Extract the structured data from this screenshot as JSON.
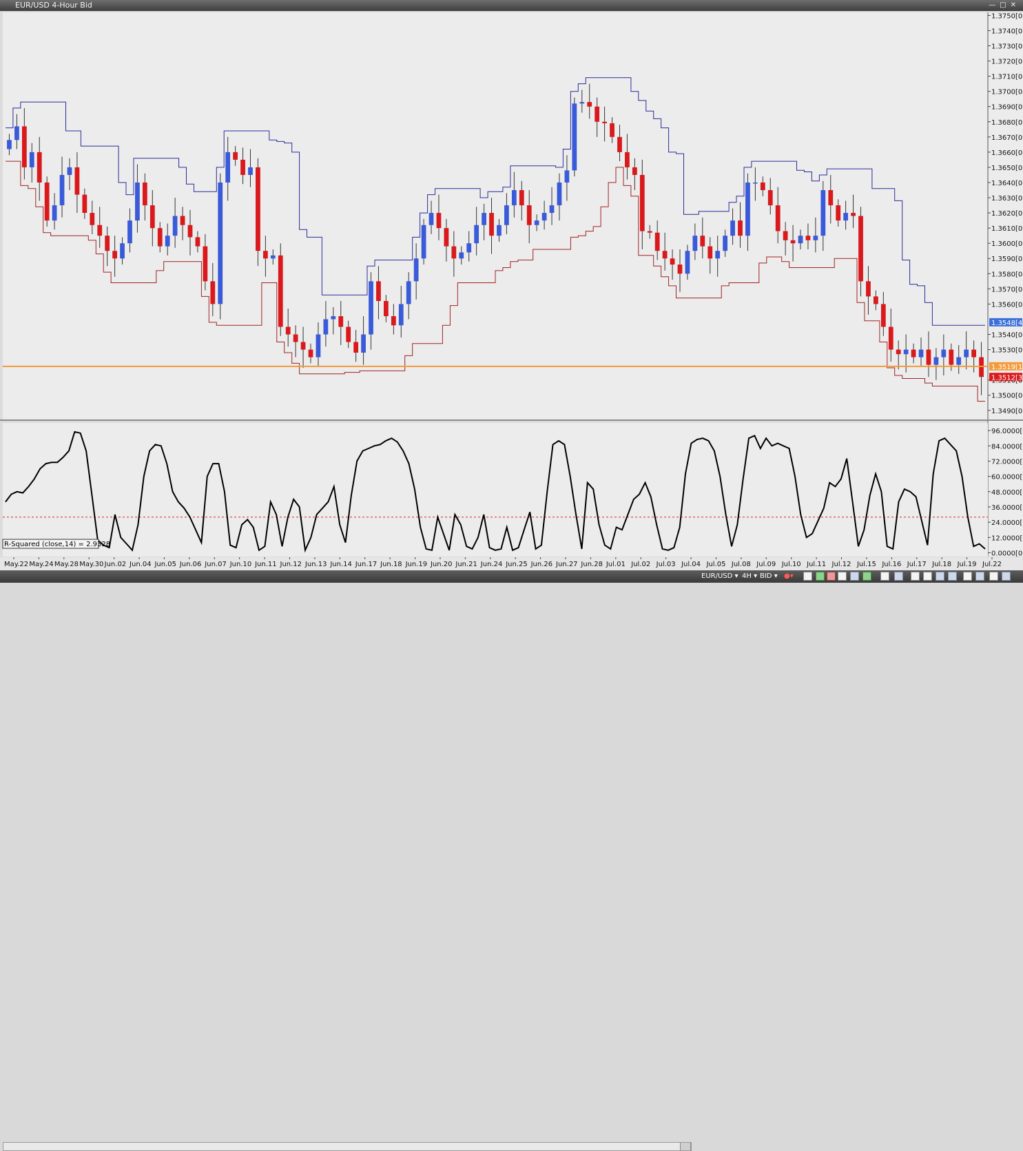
{
  "window": {
    "title": "EUR/USD 4-Hour Bid"
  },
  "colors": {
    "bg": "#ececec",
    "bull": "#3a5bd9",
    "bear": "#d9191c",
    "wick": "#333333",
    "env_upper": "#2b2b9a",
    "env_lower": "#a02222",
    "ref_line": "#f39a3a",
    "indicator": "#000000",
    "level": "#e02020"
  },
  "price_axis": {
    "labels": [
      "1.3750[0]",
      "1.3740[0]",
      "1.3730[0]",
      "1.3720[0]",
      "1.3710[0]",
      "1.3700[0]",
      "1.3690[0]",
      "1.3680[0]",
      "1.3670[0]",
      "1.3660[0]",
      "1.3650[0]",
      "1.3640[0]",
      "1.3630[0]",
      "1.3620[0]",
      "1.3610[0]",
      "1.3600[0]",
      "1.3590[0]",
      "1.3580[0]",
      "1.3570[0]",
      "1.3560[0]",
      "1.3540[0]",
      "1.3530[0]",
      "1.3510[0]",
      "1.3500[0]",
      "1.3490[0]"
    ],
    "values": [
      1.375,
      1.374,
      1.373,
      1.372,
      1.371,
      1.37,
      1.369,
      1.368,
      1.367,
      1.366,
      1.365,
      1.364,
      1.363,
      1.362,
      1.361,
      1.36,
      1.359,
      1.358,
      1.357,
      1.356,
      1.354,
      1.353,
      1.351,
      1.35,
      1.349
    ],
    "markers": [
      {
        "label": "1.3548[4]",
        "value": 1.3548,
        "color": "#3b6fd9"
      },
      {
        "label": "1.3519[1]",
        "value": 1.3519,
        "color": "#f39a3a"
      },
      {
        "label": "1.3512[3]",
        "value": 1.3512,
        "color": "#d9191c"
      }
    ]
  },
  "indicator_axis": {
    "labels": [
      "96.0000[0]",
      "84.0000[0]",
      "72.0000[0]",
      "60.0000[0]",
      "48.0000[0]",
      "36.0000[0]",
      "24.0000[0]",
      "12.0000[0]",
      "0.0000[0]"
    ],
    "values": [
      96,
      84,
      72,
      60,
      48,
      36,
      24,
      12,
      0
    ]
  },
  "indicator_label": "R-Squared (close,14) = 2.9328",
  "date_axis": {
    "labels": [
      "May.22",
      "May.24",
      "May.28",
      "May.30",
      "Jun.02",
      "Jun.04",
      "Jun.05",
      "Jun.06",
      "Jun.07",
      "Jun.10",
      "Jun.11",
      "Jun.12",
      "Jun.13",
      "Jun.14",
      "Jun.17",
      "Jun.18",
      "Jun.19",
      "Jun.20",
      "Jun.21",
      "Jun.24",
      "Jun.25",
      "Jun.26",
      "Jun.27",
      "Jun.28",
      "Jul.01",
      "Jul.02",
      "Jul.03",
      "Jul.04",
      "Jul.05",
      "Jul.08",
      "Jul.09",
      "Jul.10",
      "Jul.11",
      "Jul.12",
      "Jul.15",
      "Jul.16",
      "Jul.17",
      "Jul.18",
      "Jul.19",
      "Jul.22"
    ]
  },
  "statusbar": {
    "symbol": "EUR/USD",
    "timeframe": "4H",
    "side": "BID"
  },
  "chart_data": [
    {
      "type": "candlestick",
      "title": "EUR/USD 4-Hour Bid",
      "ylim": [
        1.3484,
        1.3752
      ],
      "reference_line": 1.3519,
      "closes": [
        1.3668,
        1.3677,
        1.365,
        1.366,
        1.364,
        1.3615,
        1.3625,
        1.3645,
        1.365,
        1.3632,
        1.362,
        1.3612,
        1.3605,
        1.3595,
        1.359,
        1.36,
        1.3615,
        1.364,
        1.3625,
        1.361,
        1.3598,
        1.3605,
        1.3618,
        1.3612,
        1.3604,
        1.3598,
        1.3575,
        1.356,
        1.364,
        1.366,
        1.3655,
        1.3645,
        1.365,
        1.3595,
        1.359,
        1.3592,
        1.3545,
        1.354,
        1.3535,
        1.353,
        1.3525,
        1.354,
        1.355,
        1.3552,
        1.3545,
        1.3535,
        1.3528,
        1.354,
        1.3575,
        1.3562,
        1.3552,
        1.3546,
        1.356,
        1.3575,
        1.359,
        1.3612,
        1.362,
        1.361,
        1.3598,
        1.359,
        1.3594,
        1.36,
        1.3612,
        1.362,
        1.3605,
        1.3612,
        1.3625,
        1.3635,
        1.3625,
        1.3612,
        1.3615,
        1.362,
        1.3625,
        1.364,
        1.3648,
        1.3692,
        1.3693,
        1.369,
        1.368,
        1.3679,
        1.367,
        1.366,
        1.365,
        1.3645,
        1.3608,
        1.3607,
        1.3595,
        1.359,
        1.3586,
        1.358,
        1.3595,
        1.3605,
        1.3598,
        1.359,
        1.3595,
        1.3605,
        1.3615,
        1.3605,
        1.364,
        1.364,
        1.3635,
        1.3625,
        1.3608,
        1.3602,
        1.36,
        1.3605,
        1.3602,
        1.3605,
        1.3635,
        1.3625,
        1.3615,
        1.362,
        1.3618,
        1.3575,
        1.3565,
        1.356,
        1.3545,
        1.353,
        1.3527,
        1.353,
        1.3525,
        1.353,
        1.352,
        1.3525,
        1.353,
        1.352,
        1.3525,
        1.353,
        1.3525,
        1.3512
      ]
    },
    {
      "type": "line",
      "title": "R-Squared (close,14) = 2.9328",
      "ylim": [
        -3,
        102
      ],
      "levels": [
        28
      ],
      "values": [
        40,
        46,
        48,
        47,
        52,
        58,
        66,
        70,
        71,
        71,
        75,
        80,
        95,
        94,
        80,
        45,
        10,
        6,
        4,
        30,
        12,
        7,
        2,
        22,
        60,
        80,
        85,
        84,
        70,
        48,
        40,
        35,
        28,
        18,
        8,
        60,
        70,
        70,
        48,
        6,
        4,
        22,
        26,
        20,
        2,
        5,
        40,
        30,
        5,
        28,
        42,
        36,
        2,
        12,
        30,
        35,
        40,
        52,
        22,
        8,
        45,
        72,
        80,
        82,
        84,
        85,
        88,
        90,
        87,
        80,
        70,
        50,
        20,
        3,
        2,
        28,
        15,
        2,
        30,
        22,
        5,
        3,
        12,
        30,
        4,
        2,
        3,
        20,
        2,
        4,
        18,
        32,
        3,
        6,
        48,
        85,
        88,
        85,
        60,
        30,
        3,
        55,
        50,
        22,
        6,
        3,
        20,
        18,
        30,
        42,
        46,
        55,
        44,
        22,
        3,
        2,
        4,
        20,
        62,
        86,
        89,
        90,
        88,
        80,
        60,
        30,
        5,
        22,
        58,
        90,
        92,
        82,
        90,
        84,
        86,
        84,
        82,
        60,
        30,
        12,
        15,
        25,
        35,
        55,
        52,
        58,
        74,
        40,
        5,
        18,
        45,
        62,
        48,
        5,
        3,
        40,
        50,
        48,
        44,
        25,
        6,
        62,
        88,
        90,
        85,
        80,
        60,
        28,
        5,
        7,
        3
      ]
    }
  ]
}
